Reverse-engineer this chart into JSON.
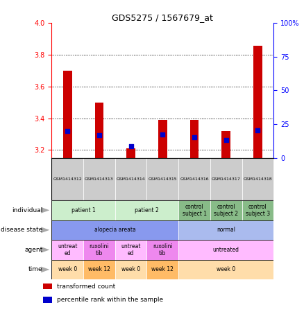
{
  "title": "GDS5275 / 1567679_at",
  "samples": [
    "GSM1414312",
    "GSM1414313",
    "GSM1414314",
    "GSM1414315",
    "GSM1414316",
    "GSM1414317",
    "GSM1414318"
  ],
  "transformed_count": [
    3.7,
    3.5,
    3.21,
    3.39,
    3.39,
    3.32,
    3.855
  ],
  "percentile_rank": [
    20.0,
    17.0,
    8.5,
    17.5,
    15.5,
    13.5,
    20.5
  ],
  "ylim_left": [
    3.15,
    4.0
  ],
  "yticks_left": [
    3.2,
    3.4,
    3.6,
    3.8,
    4.0
  ],
  "yticks_right": [
    0,
    25,
    50,
    75,
    100
  ],
  "bar_color": "#cc0000",
  "dot_color": "#0000cc",
  "rows": {
    "individual": {
      "spans": [
        {
          "start": 0,
          "end": 2,
          "text": "patient 1",
          "color": "#cceecc"
        },
        {
          "start": 2,
          "end": 4,
          "text": "patient 2",
          "color": "#cceecc"
        },
        {
          "start": 4,
          "end": 5,
          "text": "control\nsubject 1",
          "color": "#88bb88"
        },
        {
          "start": 5,
          "end": 6,
          "text": "control\nsubject 2",
          "color": "#88bb88"
        },
        {
          "start": 6,
          "end": 7,
          "text": "control\nsubject 3",
          "color": "#88bb88"
        }
      ]
    },
    "disease_state": {
      "spans": [
        {
          "start": 0,
          "end": 4,
          "text": "alopecia areata",
          "color": "#8899ee"
        },
        {
          "start": 4,
          "end": 7,
          "text": "normal",
          "color": "#aabbee"
        }
      ]
    },
    "agent": {
      "spans": [
        {
          "start": 0,
          "end": 1,
          "text": "untreat\ned",
          "color": "#ffbbff"
        },
        {
          "start": 1,
          "end": 2,
          "text": "ruxolini\ntib",
          "color": "#ee88ee"
        },
        {
          "start": 2,
          "end": 3,
          "text": "untreat\ned",
          "color": "#ffbbff"
        },
        {
          "start": 3,
          "end": 4,
          "text": "ruxolini\ntib",
          "color": "#ee88ee"
        },
        {
          "start": 4,
          "end": 7,
          "text": "untreated",
          "color": "#ffbbff"
        }
      ]
    },
    "time": {
      "spans": [
        {
          "start": 0,
          "end": 1,
          "text": "week 0",
          "color": "#ffddaa"
        },
        {
          "start": 1,
          "end": 2,
          "text": "week 12",
          "color": "#ffbb66"
        },
        {
          "start": 2,
          "end": 3,
          "text": "week 0",
          "color": "#ffddaa"
        },
        {
          "start": 3,
          "end": 4,
          "text": "week 12",
          "color": "#ffbb66"
        },
        {
          "start": 4,
          "end": 7,
          "text": "week 0",
          "color": "#ffddaa"
        }
      ]
    }
  },
  "row_labels": [
    "individual",
    "disease state",
    "agent",
    "time"
  ],
  "legend": [
    {
      "color": "#cc0000",
      "label": "transformed count"
    },
    {
      "color": "#0000cc",
      "label": "percentile rank within the sample"
    }
  ]
}
